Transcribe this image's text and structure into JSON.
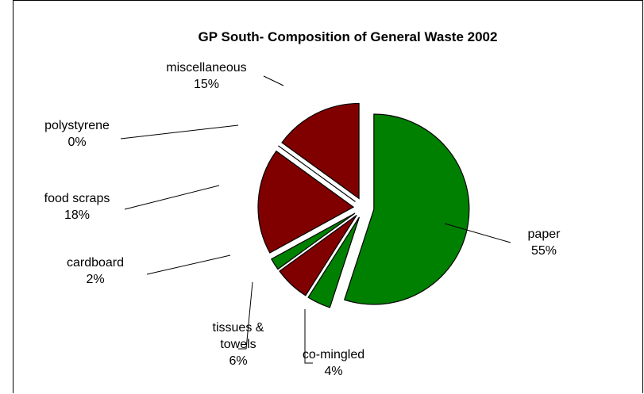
{
  "chart_data": {
    "type": "pie",
    "title": "GP South- Composition of General Waste 2002",
    "start_angle_deg": 0,
    "exploded": true,
    "slices": [
      {
        "label": "paper",
        "value": 55,
        "value_label": "55%",
        "color": "#008000"
      },
      {
        "label": "co-mingled",
        "value": 4,
        "value_label": "4%",
        "color": "#008000"
      },
      {
        "label": "tissues &",
        "label2": "towels",
        "value": 6,
        "value_label": "6%",
        "color": "#800000"
      },
      {
        "label": "cardboard",
        "value": 2,
        "value_label": "2%",
        "color": "#008000"
      },
      {
        "label": "food scraps",
        "value": 18,
        "value_label": "18%",
        "color": "#800000"
      },
      {
        "label": "polystyrene",
        "value": 0,
        "value_label": "0%",
        "color": "#008000"
      },
      {
        "label": "miscellaneous",
        "value": 15,
        "value_label": "15%",
        "color": "#800000"
      }
    ]
  }
}
